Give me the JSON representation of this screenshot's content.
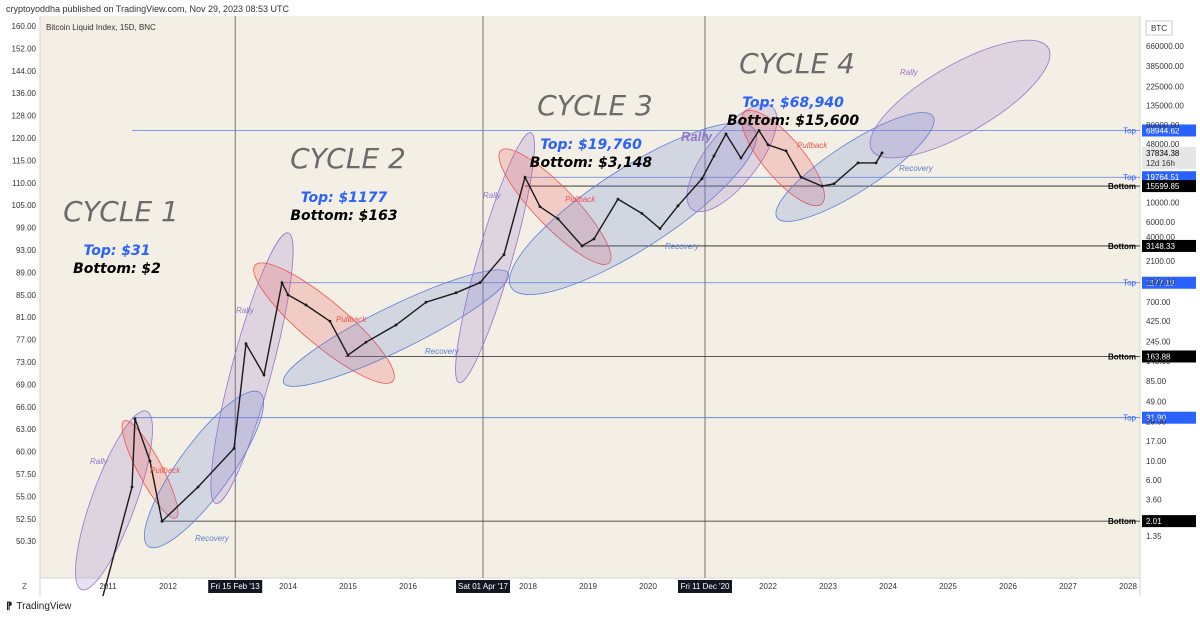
{
  "header": {
    "published": "cryptoyoddha published on TradingView.com, Nov 29, 2023 08:53 UTC"
  },
  "footer": {
    "brand": "TradingView"
  },
  "chart_data": {
    "type": "line",
    "title": "Bitcoin Liquid Index, 15D, BNC",
    "currency": "BTC",
    "scale": "log",
    "left_axis_ticks": [
      "160.00",
      "152.00",
      "144.00",
      "136.00",
      "128.00",
      "120.00",
      "115.00",
      "110.00",
      "105.00",
      "99.00",
      "93.00",
      "89.00",
      "85.00",
      "81.00",
      "77.00",
      "73.00",
      "69.00",
      "66.00",
      "63.00",
      "60.00",
      "57.50",
      "55.00",
      "52.50",
      "50.30"
    ],
    "right_axis_ticks": [
      "660000.00",
      "385000.00",
      "225000.00",
      "135000.00",
      "80000.00",
      "48000.00",
      "10000.00",
      "6000.00",
      "4000.00",
      "2100.00",
      "1200.00",
      "700.00",
      "425.00",
      "245.00",
      "145.00",
      "85.00",
      "49.00",
      "29.00",
      "17.00",
      "10.00",
      "6.00",
      "3.60",
      "2.10",
      "1.35"
    ],
    "x_ticks": [
      "2011",
      "2012",
      "2014",
      "2015",
      "2016",
      "2018",
      "2019",
      "2020",
      "2022",
      "2023",
      "2024",
      "2025",
      "2026",
      "2027",
      "2028"
    ],
    "x_highlights": [
      "Fri 15 Feb '13",
      "Sat 01 Apr '17",
      "Fri 11 Dec '20"
    ],
    "x_axis_left_label": "Z",
    "last_price": "37834.38",
    "countdown": "12d 16h",
    "levels": [
      {
        "label": "Top",
        "value": "68944.62",
        "color": "#2962ff"
      },
      {
        "label": "Top",
        "value": "19764.51",
        "color": "#2962ff"
      },
      {
        "label": "Bottom",
        "value": "15599.85",
        "color": "#000000"
      },
      {
        "label": "Bottom",
        "value": "3148.33",
        "color": "#000000"
      },
      {
        "label": "Top",
        "value": "1177.19",
        "color": "#2962ff"
      },
      {
        "label": "Bottom",
        "value": "163.88",
        "color": "#000000"
      },
      {
        "label": "Top",
        "value": "31.90",
        "color": "#2962ff"
      },
      {
        "label": "Bottom",
        "value": "2.01",
        "color": "#000000"
      }
    ],
    "cycles": [
      {
        "title": "CYCLE 1",
        "top": "Top: $31",
        "bottom": "Bottom: $2"
      },
      {
        "title": "CYCLE 2",
        "top": "Top: $1177",
        "bottom": "Bottom: $163"
      },
      {
        "title": "CYCLE 3",
        "top": "Top: $19,760",
        "bottom": "Bottom: $3,148"
      },
      {
        "title": "CYCLE 4",
        "top": "Top: $68,940",
        "bottom": "Bottom: $15,600"
      }
    ],
    "phase_labels": {
      "rally": "Rally",
      "pullback": "Pullback",
      "recovery": "Recovery"
    },
    "colors": {
      "rally": "#9575cd",
      "pullback": "#ef5350",
      "recovery": "#5c7fd6",
      "top_line": "#2962ff",
      "bottom_line": "#000000",
      "background": "#f3efe4"
    },
    "series": [
      {
        "x": [
          "2010.75",
          "2011.4",
          "2011.45",
          "2011.7",
          "2011.9",
          "2012.5",
          "2013.1",
          "2013.3",
          "2013.6",
          "2013.9",
          "2014.0",
          "2014.3",
          "2014.7",
          "2015.0",
          "2015.3",
          "2015.8",
          "2016.3",
          "2016.8",
          "2017.2",
          "2017.6",
          "2017.95",
          "2018.2",
          "2018.5",
          "2018.9",
          "2019.1",
          "2019.5",
          "2019.9",
          "2020.2",
          "2020.5",
          "2020.9",
          "2021.1",
          "2021.3",
          "2021.55",
          "2021.85",
          "2022.0",
          "2022.3",
          "2022.55",
          "2022.9",
          "2023.1",
          "2023.5",
          "2023.8",
          "2023.9"
        ],
        "y": [
          0.1,
          5,
          31,
          10,
          2,
          5,
          14,
          230,
          100,
          1177,
          850,
          650,
          420,
          170,
          240,
          380,
          700,
          900,
          1180,
          2500,
          19760,
          9000,
          6500,
          3148,
          3800,
          11000,
          7500,
          5000,
          9200,
          19000,
          35000,
          63000,
          33000,
          68940,
          47000,
          40000,
          19800,
          15600,
          16600,
          29000,
          29000,
          37834
        ]
      }
    ]
  }
}
